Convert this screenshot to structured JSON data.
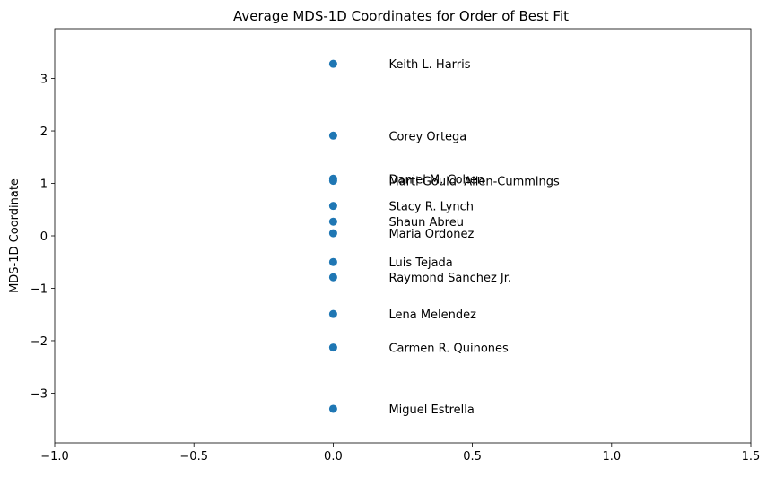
{
  "chart_data": {
    "type": "scatter",
    "title": "Average MDS-1D Coordinates for Order of Best Fit",
    "xlabel": "",
    "ylabel": "MDS-1D Coordinate",
    "xlim": [
      -1.0,
      1.5
    ],
    "ylim": [
      -3.95,
      3.95
    ],
    "x_ticks": [
      -1.0,
      -0.5,
      0.0,
      0.5,
      1.0,
      1.5
    ],
    "x_tick_labels": [
      "−1.0",
      "−0.5",
      "0.0",
      "0.5",
      "1.0",
      "1.5"
    ],
    "y_ticks": [
      -3,
      -2,
      -1,
      0,
      1,
      2,
      3
    ],
    "y_tick_labels": [
      "−3",
      "−2",
      "−1",
      "0",
      "1",
      "2",
      "3"
    ],
    "grid": false,
    "marker_color": "#1f77b4",
    "label_x_offset": 0.2,
    "points": [
      {
        "label": "Keith L. Harris",
        "x": 0.0,
        "y": 3.28
      },
      {
        "label": "Corey Ortega",
        "x": 0.0,
        "y": 1.91
      },
      {
        "label": "Daniel M. Cohen",
        "x": 0.0,
        "y": 1.09
      },
      {
        "label": "Marti Gould  Allen-Cummings",
        "x": 0.0,
        "y": 1.05
      },
      {
        "label": "Stacy R. Lynch",
        "x": 0.0,
        "y": 0.57
      },
      {
        "label": "Shaun Abreu",
        "x": 0.0,
        "y": 0.27
      },
      {
        "label": "Maria Ordonez",
        "x": 0.0,
        "y": 0.05
      },
      {
        "label": "Luis Tejada",
        "x": 0.0,
        "y": -0.5
      },
      {
        "label": "Raymond Sanchez Jr.",
        "x": 0.0,
        "y": -0.79
      },
      {
        "label": "Lena Melendez",
        "x": 0.0,
        "y": -1.49
      },
      {
        "label": "Carmen R. Quinones",
        "x": 0.0,
        "y": -2.13
      },
      {
        "label": "Miguel Estrella",
        "x": 0.0,
        "y": -3.3
      }
    ]
  }
}
